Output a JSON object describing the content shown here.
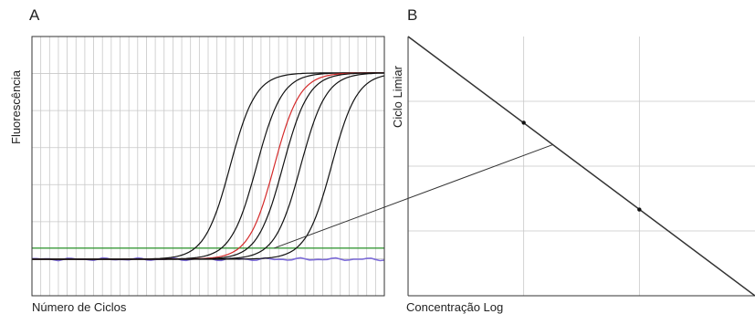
{
  "panels": [
    {
      "letter": "A",
      "xlabel": "Número de Ciclos",
      "ylabel": "Fluorescência"
    },
    {
      "letter": "B",
      "xlabel": "Concentração Log",
      "ylabel": "Ciclo Limiar"
    }
  ],
  "colors": {
    "curve": "#111111",
    "highlight_curve": "#d42a2a",
    "threshold": "#3a9a3a",
    "baseline": "#7c6bd8",
    "grid": "#c8c8c8",
    "axis": "#333333"
  },
  "chart_data": [
    {
      "type": "line",
      "panel": "A",
      "xlabel": "Número de Ciclos",
      "ylabel": "Fluorescência",
      "xlim": [
        0,
        40
      ],
      "ylim": [
        0,
        1
      ],
      "grid": true,
      "threshold": 0.055,
      "baseline": 0,
      "midpoints": [
        22.5,
        25.5,
        27.5,
        28.5,
        30.5,
        34
      ],
      "highlight_index": 2,
      "plateau": 0.92
    },
    {
      "type": "line",
      "panel": "B",
      "xlabel": "Concentração Log",
      "ylabel": "Ciclo Limiar",
      "xlim": [
        0,
        3
      ],
      "ylim": [
        0,
        4
      ],
      "grid": true,
      "line": {
        "x": [
          0,
          3
        ],
        "y": [
          4,
          0
        ]
      },
      "points": [
        {
          "x": 1,
          "y": 2.67
        },
        {
          "x": 2,
          "y": 1.33
        }
      ],
      "connector_from": {
        "panel": "A",
        "x": 27.5,
        "y": 0.055
      },
      "connector_to": {
        "panel": "B",
        "x": 1.25,
        "y": 2.33
      }
    }
  ]
}
